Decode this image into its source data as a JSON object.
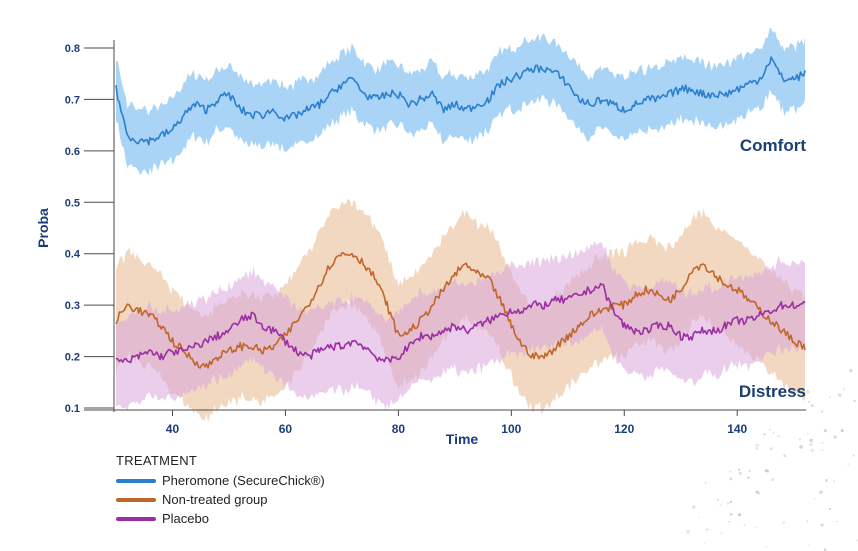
{
  "chart_data": {
    "type": "line",
    "x_label": "Time",
    "y_label": "Proba",
    "xlim": [
      30,
      152
    ],
    "ylim": [
      0.1,
      0.8
    ],
    "x_ticks": [
      40,
      60,
      80,
      100,
      120,
      140
    ],
    "y_ticks": [
      0.1,
      0.2,
      0.3,
      0.4,
      0.5,
      0.6,
      0.7,
      0.8
    ],
    "y_tick_labels": [
      "0.1",
      "0.2",
      "0.3",
      "0.4",
      "0.5",
      "0.6",
      "0.7",
      "0.8"
    ],
    "annotations": [
      {
        "text": "Comfort",
        "x": 150,
        "y": 0.6
      },
      {
        "text": "Distress",
        "x": 150,
        "y": 0.13
      }
    ],
    "series": [
      {
        "name": "Pheromone (SecureChick®)",
        "color": "#2b7fcf",
        "band_color": "#8ec6f2",
        "band_halfwidth": 0.06,
        "x": [
          30,
          32,
          34,
          36,
          38,
          40,
          42,
          44,
          46,
          48,
          50,
          52,
          54,
          56,
          58,
          60,
          62,
          64,
          66,
          68,
          70,
          72,
          74,
          76,
          78,
          80,
          82,
          84,
          86,
          88,
          90,
          92,
          94,
          96,
          98,
          100,
          102,
          104,
          106,
          108,
          110,
          112,
          114,
          116,
          118,
          120,
          122,
          124,
          126,
          128,
          130,
          132,
          134,
          136,
          138,
          140,
          142,
          144,
          146,
          148,
          150,
          152
        ],
        "values": [
          0.72,
          0.63,
          0.62,
          0.62,
          0.63,
          0.64,
          0.67,
          0.69,
          0.68,
          0.7,
          0.71,
          0.68,
          0.67,
          0.67,
          0.68,
          0.66,
          0.67,
          0.68,
          0.69,
          0.71,
          0.73,
          0.74,
          0.71,
          0.7,
          0.71,
          0.71,
          0.69,
          0.7,
          0.71,
          0.68,
          0.69,
          0.68,
          0.69,
          0.7,
          0.73,
          0.74,
          0.75,
          0.76,
          0.76,
          0.75,
          0.73,
          0.7,
          0.69,
          0.7,
          0.69,
          0.68,
          0.69,
          0.7,
          0.7,
          0.71,
          0.72,
          0.72,
          0.71,
          0.71,
          0.71,
          0.72,
          0.73,
          0.74,
          0.78,
          0.74,
          0.74,
          0.75
        ]
      },
      {
        "name": "Non-treated group",
        "color": "#c0662a",
        "band_color": "#e8b88e",
        "band_halfwidth": 0.1,
        "x": [
          30,
          32,
          34,
          36,
          38,
          40,
          42,
          44,
          46,
          48,
          50,
          52,
          54,
          56,
          58,
          60,
          62,
          64,
          66,
          68,
          70,
          72,
          74,
          76,
          78,
          80,
          82,
          84,
          86,
          88,
          90,
          92,
          94,
          96,
          98,
          100,
          102,
          104,
          106,
          108,
          110,
          112,
          114,
          116,
          118,
          120,
          122,
          124,
          126,
          128,
          130,
          132,
          134,
          136,
          138,
          140,
          142,
          144,
          146,
          148,
          150,
          152
        ],
        "values": [
          0.27,
          0.3,
          0.29,
          0.28,
          0.26,
          0.23,
          0.21,
          0.19,
          0.18,
          0.2,
          0.21,
          0.22,
          0.22,
          0.21,
          0.22,
          0.24,
          0.27,
          0.3,
          0.34,
          0.38,
          0.4,
          0.4,
          0.38,
          0.35,
          0.3,
          0.24,
          0.25,
          0.27,
          0.3,
          0.33,
          0.36,
          0.38,
          0.36,
          0.35,
          0.31,
          0.26,
          0.22,
          0.2,
          0.2,
          0.22,
          0.24,
          0.26,
          0.28,
          0.29,
          0.3,
          0.3,
          0.32,
          0.33,
          0.32,
          0.31,
          0.33,
          0.37,
          0.38,
          0.36,
          0.34,
          0.33,
          0.31,
          0.29,
          0.27,
          0.25,
          0.23,
          0.22
        ]
      },
      {
        "name": "Placebo",
        "color": "#9a2fa2",
        "band_color": "#d9a6dd",
        "band_halfwidth": 0.085,
        "x": [
          30,
          32,
          34,
          36,
          38,
          40,
          42,
          44,
          46,
          48,
          50,
          52,
          54,
          56,
          58,
          60,
          62,
          64,
          66,
          68,
          70,
          72,
          74,
          76,
          78,
          80,
          82,
          84,
          86,
          88,
          90,
          92,
          94,
          96,
          98,
          100,
          102,
          104,
          106,
          108,
          110,
          112,
          114,
          116,
          118,
          120,
          122,
          124,
          126,
          128,
          130,
          132,
          134,
          136,
          138,
          140,
          142,
          144,
          146,
          148,
          150,
          152
        ],
        "values": [
          0.19,
          0.19,
          0.2,
          0.21,
          0.2,
          0.21,
          0.21,
          0.22,
          0.23,
          0.24,
          0.25,
          0.27,
          0.28,
          0.26,
          0.25,
          0.23,
          0.21,
          0.2,
          0.21,
          0.22,
          0.22,
          0.23,
          0.22,
          0.2,
          0.19,
          0.2,
          0.22,
          0.24,
          0.24,
          0.25,
          0.26,
          0.25,
          0.26,
          0.27,
          0.28,
          0.29,
          0.29,
          0.3,
          0.3,
          0.31,
          0.31,
          0.32,
          0.33,
          0.34,
          0.29,
          0.26,
          0.25,
          0.25,
          0.26,
          0.26,
          0.24,
          0.24,
          0.25,
          0.25,
          0.26,
          0.27,
          0.27,
          0.28,
          0.29,
          0.3,
          0.3,
          0.3
        ]
      }
    ],
    "legend": {
      "title": "TREATMENT",
      "items": [
        "Pheromone (SecureChick®)",
        "Non-treated group",
        "Placebo"
      ]
    }
  }
}
